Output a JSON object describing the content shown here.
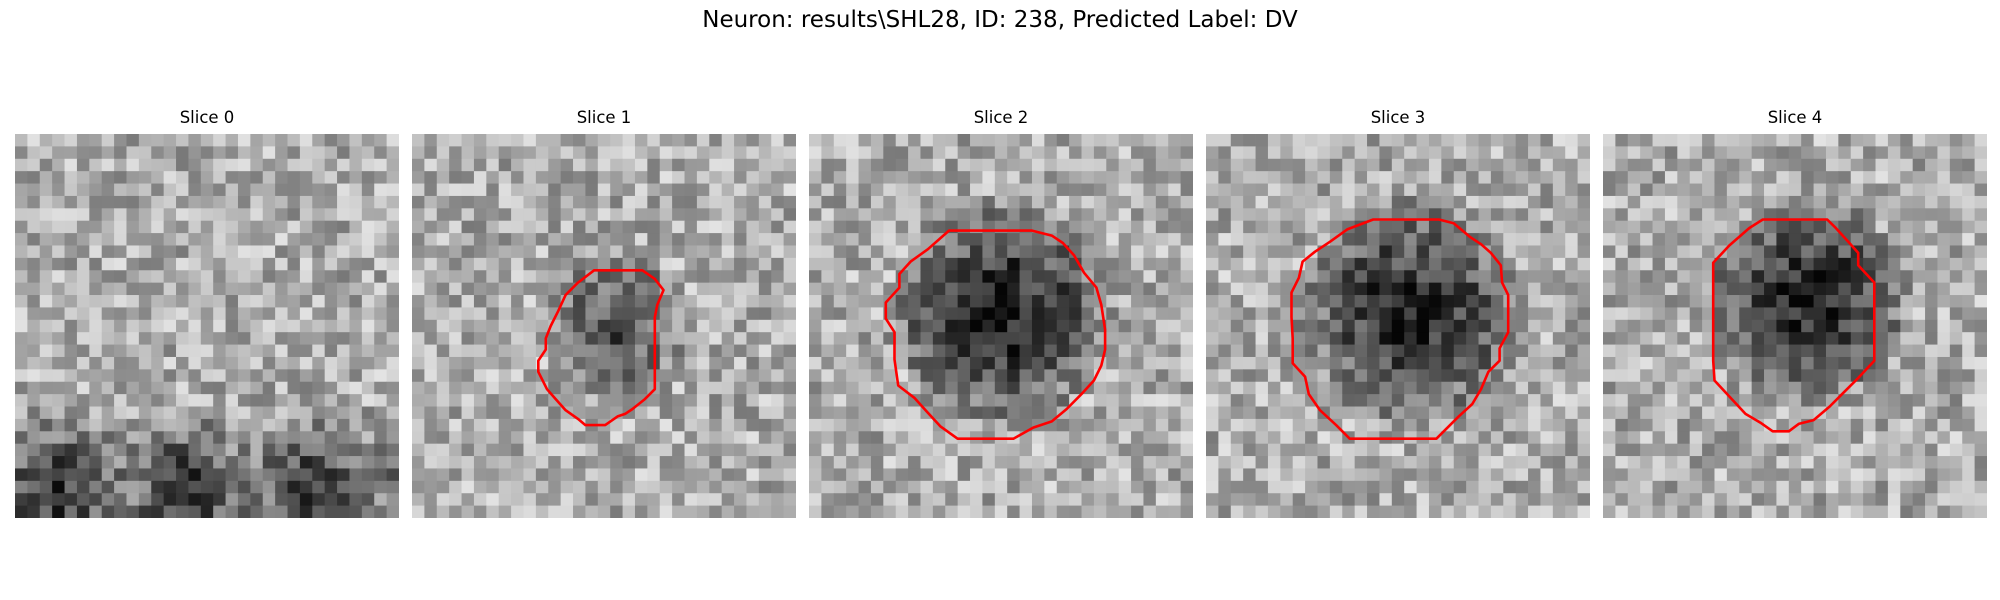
{
  "figure": {
    "title": "Neuron: results\\SHL28, ID: 238, Predicted Label: DV",
    "contour_color": "#ff0000",
    "colormap": "gray",
    "panels": [
      {
        "title": "Slice 0",
        "has_contour": false,
        "soma_intensity": 0.0
      },
      {
        "title": "Slice 1",
        "has_contour": true,
        "soma_intensity": 0.55
      },
      {
        "title": "Slice 2",
        "has_contour": true,
        "soma_intensity": 0.85
      },
      {
        "title": "Slice 3",
        "has_contour": true,
        "soma_intensity": 0.8
      },
      {
        "title": "Slice 4",
        "has_contour": true,
        "soma_intensity": 0.85
      }
    ]
  }
}
